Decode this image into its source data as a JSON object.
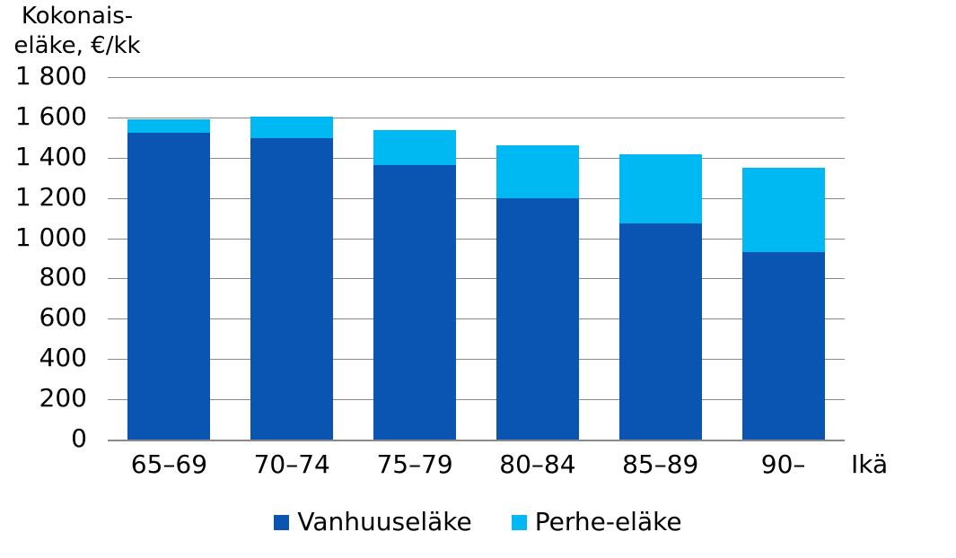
{
  "chart_data": {
    "type": "bar",
    "stacked": true,
    "title_lines": [
      "Kokonais-",
      "eläke, €/kk"
    ],
    "ylabel": "Kokonaiseläke, €/kk",
    "xlabel": "Ikä",
    "categories": [
      "65–69",
      "70–74",
      "75–79",
      "80–84",
      "85–89",
      "90–"
    ],
    "series": [
      {
        "name": "Vanhuuseläke",
        "color": "#0a55b2",
        "values": [
          1525,
          1495,
          1365,
          1200,
          1075,
          930
        ]
      },
      {
        "name": "Perhe-eläke",
        "color": "#00b8f2",
        "values": [
          65,
          110,
          170,
          260,
          340,
          420
        ]
      }
    ],
    "totals": [
      1590,
      1605,
      1535,
      1460,
      1415,
      1350
    ],
    "ylim": [
      0,
      1800
    ],
    "ytick_step": 200,
    "ytick_labels": [
      "0",
      "200",
      "400",
      "600",
      "800",
      "1 000",
      "1 200",
      "1 400",
      "1 600",
      "1 800"
    ],
    "grid": true,
    "gridline_color": "#8a8a8a",
    "legend_position": "bottom"
  }
}
